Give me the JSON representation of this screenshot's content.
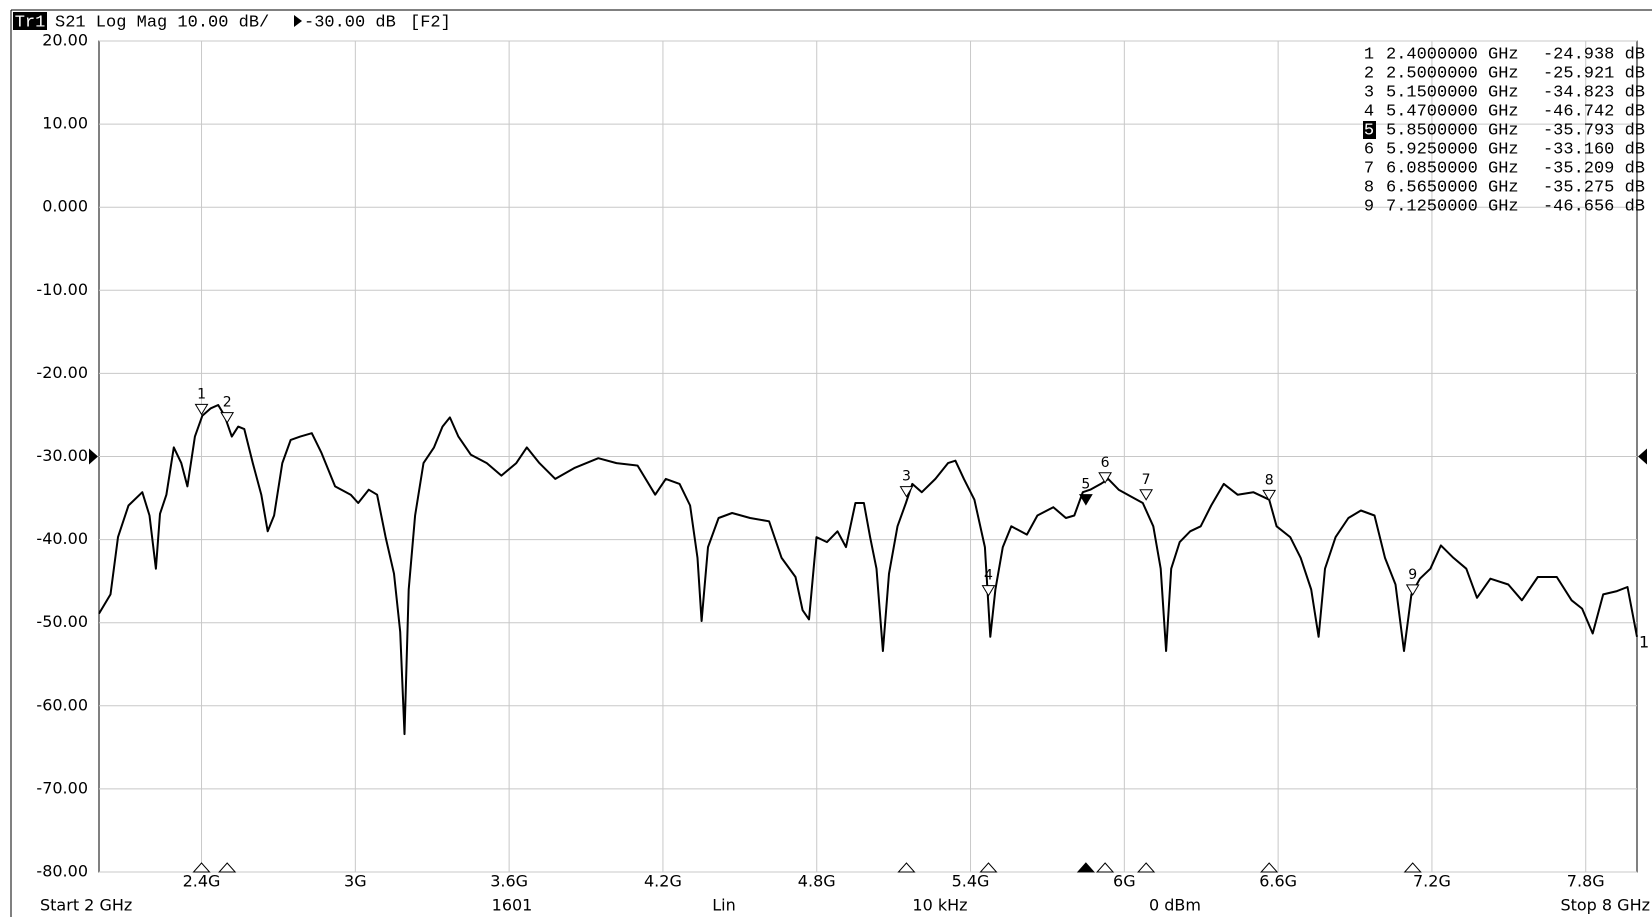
{
  "chart_data": {
    "type": "line",
    "trace": "Tr1",
    "trace_info": "S21 Log Mag 10.00 dB/",
    "reference": {
      "value": -30,
      "label": "-30.00 dB"
    },
    "channel": "[F2]",
    "trace_number": "1",
    "color": "#000000",
    "grid": true,
    "xlim": [
      2,
      8
    ],
    "ylim": [
      -80,
      20
    ],
    "yticks": [
      {
        "value": 20,
        "label": "20.00"
      },
      {
        "value": 10,
        "label": "10.00"
      },
      {
        "value": 0,
        "label": "0.000"
      },
      {
        "value": -10,
        "label": "-10.00"
      },
      {
        "value": -20,
        "label": "-20.00"
      },
      {
        "value": -30,
        "label": "-30.00"
      },
      {
        "value": -40,
        "label": "-40.00"
      },
      {
        "value": -50,
        "label": "-50.00"
      },
      {
        "value": -60,
        "label": "-60.00"
      },
      {
        "value": -70,
        "label": "-70.00"
      },
      {
        "value": -80,
        "label": "-80.00"
      }
    ],
    "xticks": [
      {
        "value": 2.4,
        "label": "2.4G"
      },
      {
        "value": 3.0,
        "label": "3G"
      },
      {
        "value": 3.6,
        "label": "3.6G"
      },
      {
        "value": 4.2,
        "label": "4.2G"
      },
      {
        "value": 4.8,
        "label": "4.8G"
      },
      {
        "value": 5.4,
        "label": "5.4G"
      },
      {
        "value": 6.0,
        "label": "6G"
      },
      {
        "value": 6.6,
        "label": "6.6G"
      },
      {
        "value": 7.2,
        "label": "7.2G"
      },
      {
        "value": 7.8,
        "label": "7.8G"
      }
    ],
    "x": [
      2.0,
      2.045,
      2.074,
      2.115,
      2.169,
      2.197,
      2.222,
      2.238,
      2.263,
      2.292,
      2.321,
      2.345,
      2.374,
      2.403,
      2.436,
      2.465,
      2.49,
      2.518,
      2.543,
      2.567,
      2.6,
      2.633,
      2.658,
      2.683,
      2.715,
      2.748,
      2.785,
      2.83,
      2.867,
      2.921,
      2.982,
      3.011,
      3.052,
      3.085,
      3.118,
      3.151,
      3.175,
      3.192,
      3.208,
      3.233,
      3.266,
      3.307,
      3.34,
      3.369,
      3.402,
      3.451,
      3.513,
      3.57,
      3.628,
      3.669,
      3.718,
      3.78,
      3.854,
      3.948,
      4.019,
      4.101,
      4.17,
      4.211,
      4.265,
      4.306,
      4.335,
      4.351,
      4.376,
      4.417,
      4.47,
      4.54,
      4.614,
      4.663,
      4.717,
      4.745,
      4.77,
      4.799,
      4.84,
      4.881,
      4.914,
      4.951,
      4.984,
      5.008,
      5.033,
      5.058,
      5.082,
      5.115,
      5.148,
      5.173,
      5.21,
      5.263,
      5.312,
      5.341,
      5.374,
      5.415,
      5.456,
      5.477,
      5.497,
      5.526,
      5.559,
      5.62,
      5.661,
      5.723,
      5.772,
      5.805,
      5.838,
      5.867,
      5.908,
      5.937,
      5.978,
      6.031,
      6.072,
      6.113,
      6.142,
      6.163,
      6.183,
      6.216,
      6.257,
      6.298,
      6.339,
      6.388,
      6.442,
      6.503,
      6.565,
      6.594,
      6.647,
      6.688,
      6.729,
      6.758,
      6.783,
      6.824,
      6.874,
      6.923,
      6.976,
      7.017,
      7.058,
      7.091,
      7.12,
      7.153,
      7.194,
      7.235,
      7.284,
      7.334,
      7.376,
      7.428,
      7.498,
      7.551,
      7.613,
      7.687,
      7.745,
      7.786,
      7.827,
      7.868,
      7.922,
      7.963,
      8.0
    ],
    "values": [
      -48.9,
      -46.6,
      -39.7,
      -35.9,
      -34.3,
      -37.1,
      -43.5,
      -36.9,
      -34.6,
      -28.9,
      -30.8,
      -33.6,
      -27.6,
      -25.1,
      -24.2,
      -23.8,
      -25.1,
      -27.6,
      -26.4,
      -26.7,
      -30.8,
      -34.6,
      -39.0,
      -37.1,
      -30.8,
      -28.0,
      -27.6,
      -27.2,
      -29.5,
      -33.6,
      -34.6,
      -35.6,
      -34.0,
      -34.6,
      -39.7,
      -44.1,
      -51.1,
      -63.4,
      -46.0,
      -37.1,
      -30.8,
      -28.9,
      -26.4,
      -25.3,
      -27.6,
      -29.8,
      -30.8,
      -32.3,
      -30.8,
      -28.9,
      -30.8,
      -32.7,
      -31.4,
      -30.2,
      -30.8,
      -31.1,
      -34.6,
      -32.7,
      -33.3,
      -35.9,
      -42.2,
      -49.8,
      -40.9,
      -37.4,
      -36.8,
      -37.4,
      -37.8,
      -42.2,
      -44.5,
      -48.5,
      -49.6,
      -39.7,
      -40.3,
      -39.0,
      -40.9,
      -35.6,
      -35.6,
      -39.7,
      -43.5,
      -53.4,
      -44.1,
      -38.4,
      -35.6,
      -33.3,
      -34.3,
      -32.7,
      -30.8,
      -30.5,
      -32.7,
      -35.2,
      -40.9,
      -51.7,
      -46.0,
      -40.9,
      -38.4,
      -39.4,
      -37.1,
      -36.1,
      -37.4,
      -37.1,
      -34.3,
      -34.0,
      -33.3,
      -32.7,
      -34.0,
      -34.9,
      -35.6,
      -38.4,
      -43.5,
      -53.4,
      -43.5,
      -40.3,
      -39.0,
      -38.4,
      -35.9,
      -33.3,
      -34.6,
      -34.3,
      -35.2,
      -38.4,
      -39.7,
      -42.2,
      -46.0,
      -51.7,
      -43.5,
      -39.7,
      -37.4,
      -36.5,
      -37.1,
      -42.2,
      -45.4,
      -53.4,
      -46.6,
      -44.7,
      -43.5,
      -40.7,
      -42.2,
      -43.5,
      -47.0,
      -44.7,
      -45.4,
      -47.3,
      -44.5,
      -44.5,
      -47.3,
      -48.3,
      -51.3,
      -46.6,
      -46.2,
      -45.7,
      -51.7
    ],
    "markers": [
      {
        "label": "1",
        "x": 2.4,
        "y": -24.938,
        "x_label": "2.4000000 GHz",
        "y_label": "-24.938 dB"
      },
      {
        "label": "2",
        "x": 2.5,
        "y": -25.921,
        "x_label": "2.5000000 GHz",
        "y_label": "-25.921 dB"
      },
      {
        "label": "3",
        "x": 5.15,
        "y": -34.823,
        "x_label": "5.1500000 GHz",
        "y_label": "-34.823 dB"
      },
      {
        "label": "4",
        "x": 5.47,
        "y": -46.742,
        "x_label": "5.4700000 GHz",
        "y_label": "-46.742 dB"
      },
      {
        "label": "5",
        "x": 5.85,
        "y": -35.793,
        "x_label": "5.8500000 GHz",
        "y_label": "-35.793 dB",
        "active": true
      },
      {
        "label": "6",
        "x": 5.925,
        "y": -33.16,
        "x_label": "5.9250000 GHz",
        "y_label": "-33.160 dB"
      },
      {
        "label": "7",
        "x": 6.085,
        "y": -35.209,
        "x_label": "6.0850000 GHz",
        "y_label": "-35.209 dB"
      },
      {
        "label": "8",
        "x": 6.565,
        "y": -35.275,
        "x_label": "6.5650000 GHz",
        "y_label": "-35.275 dB"
      },
      {
        "label": "9",
        "x": 7.125,
        "y": -46.656,
        "x_label": "7.1250000 GHz",
        "y_label": "-46.656 dB"
      }
    ],
    "footer": [
      "Start 2 GHz",
      "1601",
      "Lin",
      "10 kHz",
      "0 dBm",
      "Stop 8 GHz"
    ]
  }
}
